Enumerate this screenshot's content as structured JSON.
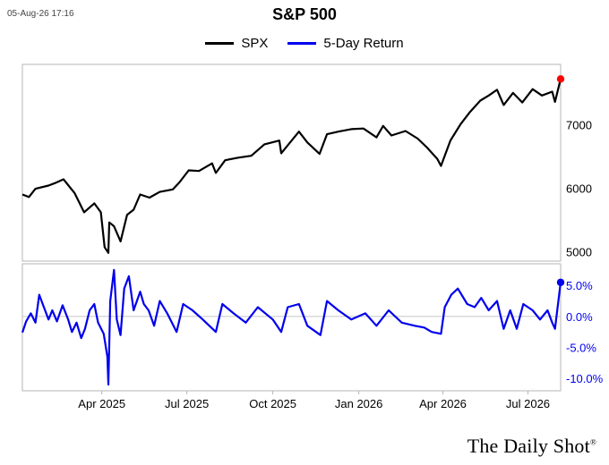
{
  "timestamp": "05-Aug-26 17:16",
  "chart_data": {
    "type": "line",
    "title": "S&P 500",
    "legend": [
      "SPX",
      "5-Day Return"
    ],
    "legend_position": "top-center",
    "x_ticks": [
      "Apr 2025",
      "Jul 2025",
      "Oct 2025",
      "Jan 2026",
      "Apr 2026",
      "Jul 2026"
    ],
    "x_tick_dates": [
      "2025-04-01",
      "2025-07-01",
      "2025-10-01",
      "2026-01-01",
      "2026-04-01",
      "2026-07-01"
    ],
    "x_range": [
      "2025-01-06",
      "2026-08-05"
    ],
    "panels": [
      {
        "name": "SPX",
        "color": "#000000",
        "ylim": [
          4850,
          7950
        ],
        "y_ticks": [
          5000,
          6000,
          7000
        ],
        "y_tick_labels": [
          "5000",
          "6000",
          "7000"
        ],
        "highlight_last_color": "#ff0000",
        "points": [
          [
            "2025-01-06",
            5900
          ],
          [
            "2025-01-13",
            5860
          ],
          [
            "2025-01-20",
            5990
          ],
          [
            "2025-02-03",
            6040
          ],
          [
            "2025-02-10",
            6080
          ],
          [
            "2025-02-19",
            6140
          ],
          [
            "2025-03-03",
            5920
          ],
          [
            "2025-03-13",
            5620
          ],
          [
            "2025-03-24",
            5760
          ],
          [
            "2025-03-31",
            5620
          ],
          [
            "2025-04-04",
            5070
          ],
          [
            "2025-04-08",
            4980
          ],
          [
            "2025-04-09",
            5460
          ],
          [
            "2025-04-14",
            5400
          ],
          [
            "2025-04-21",
            5160
          ],
          [
            "2025-04-28",
            5580
          ],
          [
            "2025-05-05",
            5660
          ],
          [
            "2025-05-12",
            5900
          ],
          [
            "2025-05-22",
            5850
          ],
          [
            "2025-06-02",
            5940
          ],
          [
            "2025-06-16",
            5980
          ],
          [
            "2025-06-23",
            6090
          ],
          [
            "2025-07-03",
            6280
          ],
          [
            "2025-07-14",
            6270
          ],
          [
            "2025-07-28",
            6390
          ],
          [
            "2025-08-01",
            6240
          ],
          [
            "2025-08-11",
            6440
          ],
          [
            "2025-08-25",
            6480
          ],
          [
            "2025-09-08",
            6510
          ],
          [
            "2025-09-22",
            6690
          ],
          [
            "2025-10-08",
            6750
          ],
          [
            "2025-10-10",
            6550
          ],
          [
            "2025-10-20",
            6730
          ],
          [
            "2025-10-29",
            6890
          ],
          [
            "2025-11-07",
            6720
          ],
          [
            "2025-11-20",
            6540
          ],
          [
            "2025-11-28",
            6850
          ],
          [
            "2025-12-10",
            6890
          ],
          [
            "2025-12-24",
            6930
          ],
          [
            "2026-01-06",
            6940
          ],
          [
            "2026-01-20",
            6800
          ],
          [
            "2026-01-27",
            6980
          ],
          [
            "2026-02-05",
            6830
          ],
          [
            "2026-02-20",
            6900
          ],
          [
            "2026-03-05",
            6780
          ],
          [
            "2026-03-15",
            6640
          ],
          [
            "2026-03-26",
            6460
          ],
          [
            "2026-03-30",
            6350
          ],
          [
            "2026-04-09",
            6750
          ],
          [
            "2026-04-20",
            7010
          ],
          [
            "2026-04-30",
            7200
          ],
          [
            "2026-05-11",
            7380
          ],
          [
            "2026-05-20",
            7460
          ],
          [
            "2026-05-29",
            7550
          ],
          [
            "2026-06-05",
            7310
          ],
          [
            "2026-06-15",
            7500
          ],
          [
            "2026-06-25",
            7350
          ],
          [
            "2026-07-06",
            7560
          ],
          [
            "2026-07-16",
            7460
          ],
          [
            "2026-07-27",
            7520
          ],
          [
            "2026-07-30",
            7360
          ],
          [
            "2026-08-05",
            7720
          ]
        ]
      },
      {
        "name": "5-Day Return",
        "color": "#0000ee",
        "ylim": [
          -12.0,
          8.5
        ],
        "y_ticks": [
          5.0,
          0.0,
          -5.0,
          -10.0
        ],
        "y_tick_labels": [
          "5.0%",
          "0.0%",
          "-5.0%",
          "-10.0%"
        ],
        "zero_line": true,
        "highlight_last_color": "#0000ee",
        "points": [
          [
            "2025-01-06",
            -2.6
          ],
          [
            "2025-01-10",
            -0.8
          ],
          [
            "2025-01-15",
            0.5
          ],
          [
            "2025-01-20",
            -1.0
          ],
          [
            "2025-01-24",
            3.5
          ],
          [
            "2025-01-29",
            1.5
          ],
          [
            "2025-02-03",
            -0.5
          ],
          [
            "2025-02-07",
            1.0
          ],
          [
            "2025-02-12",
            -0.8
          ],
          [
            "2025-02-18",
            1.8
          ],
          [
            "2025-02-24",
            -0.5
          ],
          [
            "2025-02-28",
            -2.5
          ],
          [
            "2025-03-05",
            -1.0
          ],
          [
            "2025-03-10",
            -3.5
          ],
          [
            "2025-03-14",
            -2.0
          ],
          [
            "2025-03-19",
            1.0
          ],
          [
            "2025-03-24",
            2.0
          ],
          [
            "2025-03-28",
            -1.0
          ],
          [
            "2025-04-03",
            -2.8
          ],
          [
            "2025-04-07",
            -6.5
          ],
          [
            "2025-04-08",
            -11.0
          ],
          [
            "2025-04-10",
            2.5
          ],
          [
            "2025-04-14",
            7.5
          ],
          [
            "2025-04-17",
            -0.5
          ],
          [
            "2025-04-21",
            -3.0
          ],
          [
            "2025-04-25",
            4.5
          ],
          [
            "2025-04-30",
            6.5
          ],
          [
            "2025-05-05",
            1.0
          ],
          [
            "2025-05-12",
            4.0
          ],
          [
            "2025-05-16",
            2.0
          ],
          [
            "2025-05-21",
            1.0
          ],
          [
            "2025-05-27",
            -1.5
          ],
          [
            "2025-06-02",
            2.5
          ],
          [
            "2025-06-10",
            0.5
          ],
          [
            "2025-06-20",
            -2.5
          ],
          [
            "2025-06-27",
            2.0
          ],
          [
            "2025-07-07",
            1.0
          ],
          [
            "2025-07-18",
            -0.5
          ],
          [
            "2025-08-01",
            -2.5
          ],
          [
            "2025-08-08",
            2.0
          ],
          [
            "2025-08-20",
            0.5
          ],
          [
            "2025-09-02",
            -1.0
          ],
          [
            "2025-09-15",
            1.5
          ],
          [
            "2025-10-01",
            -0.5
          ],
          [
            "2025-10-10",
            -2.5
          ],
          [
            "2025-10-17",
            1.5
          ],
          [
            "2025-10-29",
            2.0
          ],
          [
            "2025-11-07",
            -1.5
          ],
          [
            "2025-11-21",
            -3.0
          ],
          [
            "2025-11-28",
            2.5
          ],
          [
            "2025-12-10",
            1.0
          ],
          [
            "2025-12-24",
            -0.5
          ],
          [
            "2026-01-08",
            0.5
          ],
          [
            "2026-01-20",
            -1.5
          ],
          [
            "2026-02-02",
            1.0
          ],
          [
            "2026-02-16",
            -1.0
          ],
          [
            "2026-03-02",
            -1.5
          ],
          [
            "2026-03-12",
            -1.8
          ],
          [
            "2026-03-20",
            -2.5
          ],
          [
            "2026-03-30",
            -2.8
          ],
          [
            "2026-04-03",
            1.5
          ],
          [
            "2026-04-10",
            3.5
          ],
          [
            "2026-04-17",
            4.5
          ],
          [
            "2026-04-27",
            2.0
          ],
          [
            "2026-05-05",
            1.5
          ],
          [
            "2026-05-12",
            3.0
          ],
          [
            "2026-05-20",
            1.0
          ],
          [
            "2026-05-29",
            2.5
          ],
          [
            "2026-06-05",
            -2.0
          ],
          [
            "2026-06-12",
            1.0
          ],
          [
            "2026-06-19",
            -2.0
          ],
          [
            "2026-06-26",
            2.0
          ],
          [
            "2026-07-06",
            1.0
          ],
          [
            "2026-07-14",
            -0.5
          ],
          [
            "2026-07-22",
            1.0
          ],
          [
            "2026-07-27",
            -1.0
          ],
          [
            "2026-07-30",
            -2.0
          ],
          [
            "2026-08-05",
            5.5
          ]
        ]
      }
    ]
  },
  "brand": "The Daily Shot",
  "brand_mark": "®"
}
